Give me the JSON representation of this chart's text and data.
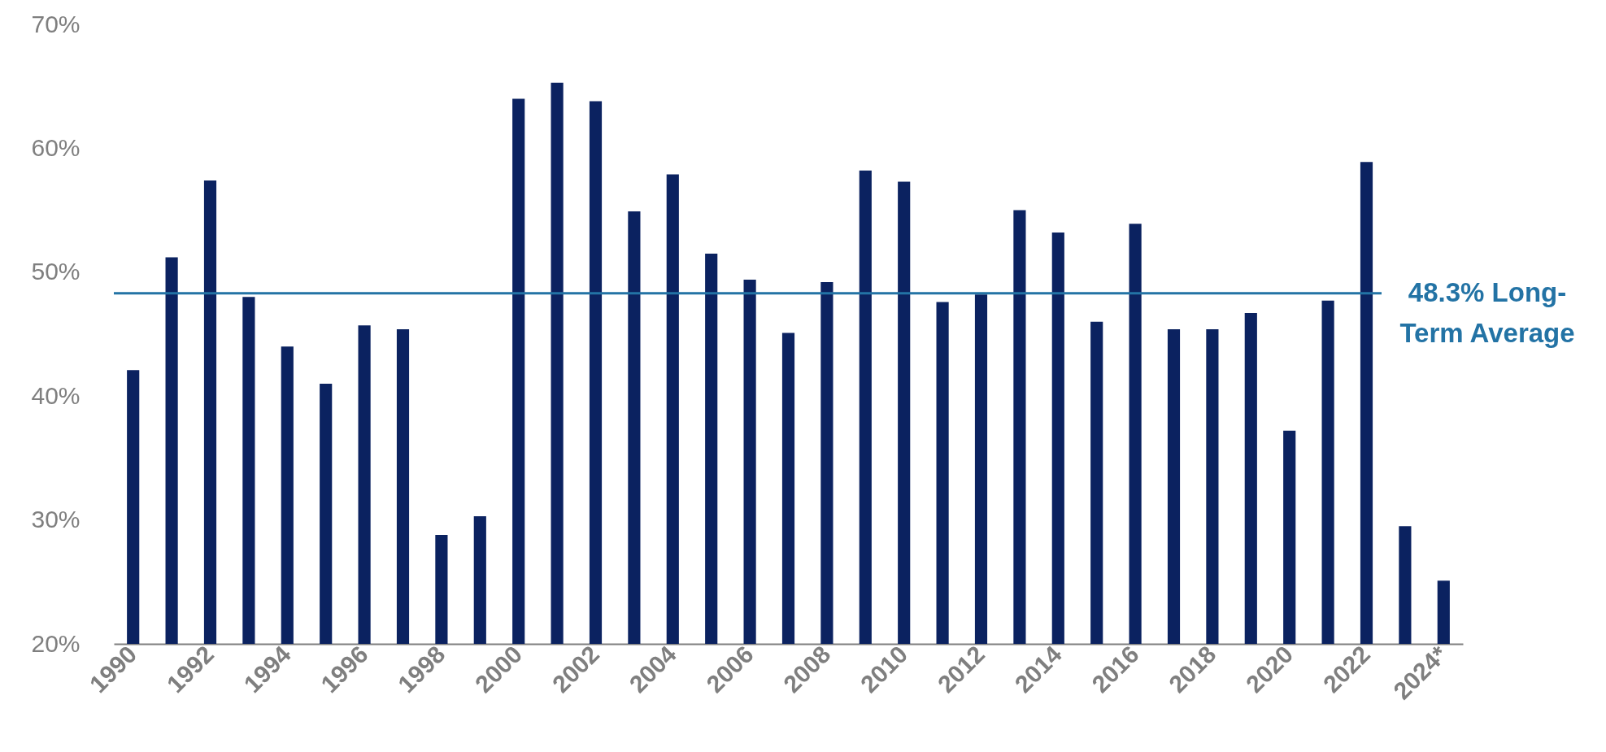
{
  "chart_data": {
    "type": "bar",
    "categories": [
      "1990",
      null,
      "1992",
      null,
      "1994",
      null,
      "1996",
      null,
      "1998",
      null,
      "2000",
      null,
      "2002",
      null,
      "2004",
      null,
      "2006",
      null,
      "2008",
      null,
      "2010",
      null,
      "2012",
      null,
      "2014",
      null,
      "2016",
      null,
      "2018",
      null,
      "2020",
      null,
      "2022",
      null,
      "2024*"
    ],
    "values": [
      42.1,
      51.2,
      57.4,
      48.0,
      44.0,
      41.0,
      45.7,
      45.4,
      28.8,
      30.3,
      64.0,
      65.3,
      63.8,
      54.9,
      57.9,
      51.5,
      49.4,
      45.1,
      49.2,
      58.2,
      57.3,
      47.6,
      48.2,
      55.0,
      53.2,
      46.0,
      53.9,
      45.4,
      45.4,
      46.7,
      37.2,
      47.7,
      58.9,
      29.5,
      25.1
    ],
    "color": "#0b2260",
    "ylim": [
      20,
      70
    ],
    "yticks": [
      {
        "value": 20,
        "label": "20%"
      },
      {
        "value": 30,
        "label": "30%"
      },
      {
        "value": 40,
        "label": "40%"
      },
      {
        "value": 50,
        "label": "50%"
      },
      {
        "value": 60,
        "label": "60%"
      },
      {
        "value": 70,
        "label": "70%"
      }
    ],
    "ref_lines": [
      {
        "axis": "y",
        "value": 48.3,
        "label": "48.3% Long-\nTerm Average",
        "color": "#2373a5"
      }
    ]
  }
}
